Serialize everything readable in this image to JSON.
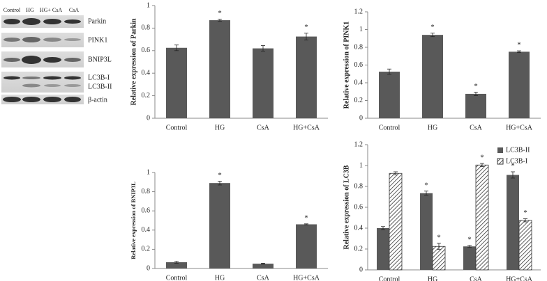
{
  "blot": {
    "lanes": [
      "Control",
      "HG",
      "HG+ CsA",
      "CsA"
    ],
    "bands": [
      "Parkin",
      "PINK1",
      "BNIP3L",
      "LC3B-I",
      "LC3B-II",
      "β-actin"
    ]
  },
  "chart_data": [
    {
      "type": "bar",
      "ylabel": "Relative expression of Parkin",
      "categories": [
        "Control",
        "HG",
        "CsA",
        "HG+CsA"
      ],
      "series": [
        {
          "name": "Parkin",
          "color": "#595959",
          "values": [
            0.625,
            0.87,
            0.62,
            0.725
          ],
          "errors": [
            0.025,
            0.01,
            0.025,
            0.03
          ],
          "stars": [
            null,
            "*",
            null,
            "*"
          ]
        }
      ],
      "ylim": [
        0,
        1
      ],
      "yticks": [
        0,
        0.2,
        0.4,
        0.6,
        0.8,
        1
      ]
    },
    {
      "type": "bar",
      "ylabel": "Relative expression of PINK1",
      "categories": [
        "Control",
        "HG",
        "CsA",
        "HG+CsA"
      ],
      "series": [
        {
          "name": "PINK1",
          "color": "#595959",
          "values": [
            0.525,
            0.94,
            0.275,
            0.75
          ],
          "errors": [
            0.03,
            0.02,
            0.02,
            0.01
          ],
          "stars": [
            null,
            "*",
            "*",
            "*"
          ]
        }
      ],
      "ylim": [
        0,
        1.2
      ],
      "yticks": [
        0,
        0.2,
        0.4,
        0.6,
        0.8,
        1,
        1.2
      ]
    },
    {
      "type": "bar",
      "ylabel": "Relative expression of BNIP3L",
      "categories": [
        "Control",
        "HG",
        "CsA",
        "HG+CsA"
      ],
      "series": [
        {
          "name": "BNIP3L",
          "color": "#595959",
          "values": [
            0.065,
            0.89,
            0.05,
            0.46
          ],
          "errors": [
            0.01,
            0.02,
            0.005,
            0.005
          ],
          "stars": [
            null,
            "*",
            null,
            "*"
          ]
        }
      ],
      "ylim": [
        0,
        1
      ],
      "yticks": [
        0,
        0.2,
        0.4,
        0.6,
        0.8,
        1
      ]
    },
    {
      "type": "bar",
      "ylabel": "Relative expression of LC3B",
      "categories": [
        "Control",
        "HG",
        "CsA",
        "HG+CsA"
      ],
      "legend": "upper right",
      "series": [
        {
          "name": "LC3B-II",
          "color": "#595959",
          "values": [
            0.4,
            0.735,
            0.225,
            0.91
          ],
          "errors": [
            0.015,
            0.02,
            0.01,
            0.03
          ],
          "stars": [
            null,
            "*",
            "*",
            "*"
          ]
        },
        {
          "name": "LC3B-I",
          "color": "#ffffff",
          "hatch": true,
          "values": [
            0.925,
            0.225,
            1.005,
            0.475
          ],
          "errors": [
            0.015,
            0.03,
            0.015,
            0.015
          ],
          "stars": [
            null,
            "*",
            "*",
            "*"
          ]
        }
      ],
      "ylim": [
        0,
        1.2
      ],
      "yticks": [
        0,
        0.2,
        0.4,
        0.6,
        0.8,
        1,
        1.2
      ]
    }
  ]
}
